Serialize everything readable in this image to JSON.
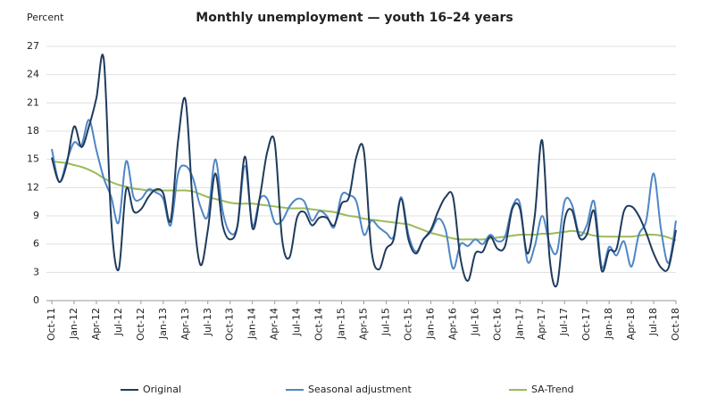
{
  "chart_data": {
    "type": "line",
    "title": "Monthly unemployment — youth 16–24 years",
    "y_label": "Percent",
    "categories": [
      "Oct-11",
      null,
      null,
      "Jan-12",
      null,
      null,
      "Apr-12",
      null,
      null,
      "Jul-12",
      null,
      null,
      "Oct-12",
      null,
      null,
      "Jan-13",
      null,
      null,
      "Apr-13",
      null,
      null,
      "Jul-13",
      null,
      null,
      "Oct-13",
      null,
      null,
      "Jan-14",
      null,
      null,
      "Apr-14",
      null,
      null,
      "Jul-14",
      null,
      null,
      "Oct-14",
      null,
      null,
      "Jan-15",
      null,
      null,
      "Apr-15",
      null,
      null,
      "Jul-15",
      null,
      null,
      "Oct-15",
      null,
      null,
      "Jan-16",
      null,
      null,
      "Apr-16",
      null,
      null,
      "Jul-16",
      null,
      null,
      "Oct-16",
      null,
      null,
      "Jan-17",
      null,
      null,
      "Apr-17",
      null,
      null,
      "Jul-17",
      null,
      null,
      "Oct-17",
      null,
      null,
      "Jan-18",
      null,
      null,
      "Apr-18",
      null,
      null,
      "Jul-18",
      null,
      null,
      "Oct-18"
    ],
    "series": [
      {
        "name": "Original",
        "color": "#1f3b5c",
        "values": [
          15.2,
          12.6,
          14.5,
          18.5,
          16.3,
          18.5,
          21.5,
          25.6,
          8.5,
          3.3,
          11.8,
          9.5,
          9.7,
          11,
          11.8,
          11.4,
          8.5,
          17,
          21.3,
          10,
          3.8,
          7.5,
          13.5,
          8,
          6.5,
          8,
          15.3,
          7.7,
          11,
          15.8,
          16.8,
          6.5,
          4.6,
          8.8,
          9.4,
          8,
          8.8,
          8.8,
          8,
          10.3,
          11,
          15.3,
          15.9,
          5.5,
          3.3,
          5.5,
          6.5,
          10.8,
          6.5,
          5,
          6.5,
          7.5,
          9.5,
          11,
          11,
          4.5,
          2.1,
          5,
          5.2,
          6.8,
          5.5,
          5.8,
          9.8,
          9.8,
          5,
          9,
          17,
          4.5,
          1.7,
          8.5,
          9.6,
          6.7,
          7,
          9.5,
          3.2,
          5.3,
          5.5,
          9.5,
          10,
          9,
          7.2,
          5,
          3.5,
          3.5,
          7.5
        ]
      },
      {
        "name": "Seasonal adjustment",
        "color": "#4f86c6",
        "values": [
          16.1,
          12.6,
          14.8,
          16.8,
          16.5,
          19.2,
          16,
          13,
          11,
          8.3,
          14.8,
          11,
          10.8,
          11.8,
          11.5,
          10.8,
          8,
          13.5,
          14.3,
          13,
          10,
          9,
          15,
          9.5,
          7.2,
          8,
          14.3,
          8,
          10.8,
          10.8,
          8.3,
          8.5,
          10,
          10.8,
          10.5,
          8.5,
          9.5,
          9,
          7.8,
          11.2,
          11.2,
          10.5,
          7,
          8.5,
          7.8,
          7.2,
          6.8,
          11,
          7,
          5.2,
          6.5,
          7.3,
          8.7,
          7.5,
          3.4,
          6,
          5.8,
          6.5,
          6,
          7,
          6.3,
          6.8,
          10,
          10.3,
          4.2,
          5.8,
          9,
          6,
          5.2,
          10.5,
          10.2,
          7,
          8,
          10.5,
          3.6,
          5.7,
          4.8,
          6.3,
          3.6,
          7,
          8.5,
          13.5,
          7.5,
          4,
          8.5
        ]
      },
      {
        "name": "SA-Trend",
        "color": "#9bbb59",
        "values": [
          14.8,
          14.7,
          14.6,
          14.4,
          14.2,
          13.9,
          13.5,
          13.0,
          12.6,
          12.3,
          12.1,
          11.9,
          11.8,
          11.7,
          11.7,
          11.7,
          11.7,
          11.7,
          11.7,
          11.6,
          11.3,
          11.0,
          10.8,
          10.6,
          10.4,
          10.3,
          10.3,
          10.3,
          10.2,
          10.1,
          10.0,
          9.9,
          9.8,
          9.8,
          9.8,
          9.7,
          9.6,
          9.5,
          9.4,
          9.2,
          9.0,
          8.9,
          8.7,
          8.6,
          8.5,
          8.4,
          8.3,
          8.2,
          8.1,
          7.8,
          7.5,
          7.2,
          7.0,
          6.8,
          6.6,
          6.5,
          6.5,
          6.5,
          6.5,
          6.6,
          6.7,
          6.8,
          6.9,
          7.0,
          7.0,
          7.0,
          7.1,
          7.1,
          7.2,
          7.3,
          7.4,
          7.3,
          7.1,
          6.9,
          6.8,
          6.8,
          6.8,
          6.8,
          6.8,
          6.9,
          7.0,
          7.0,
          6.9,
          6.7,
          6.4
        ]
      }
    ],
    "ylim": [
      0,
      27
    ],
    "yticks": [
      0,
      3,
      6,
      9,
      12,
      15,
      18,
      21,
      24,
      27
    ],
    "grid": true,
    "legend": "bottom"
  }
}
